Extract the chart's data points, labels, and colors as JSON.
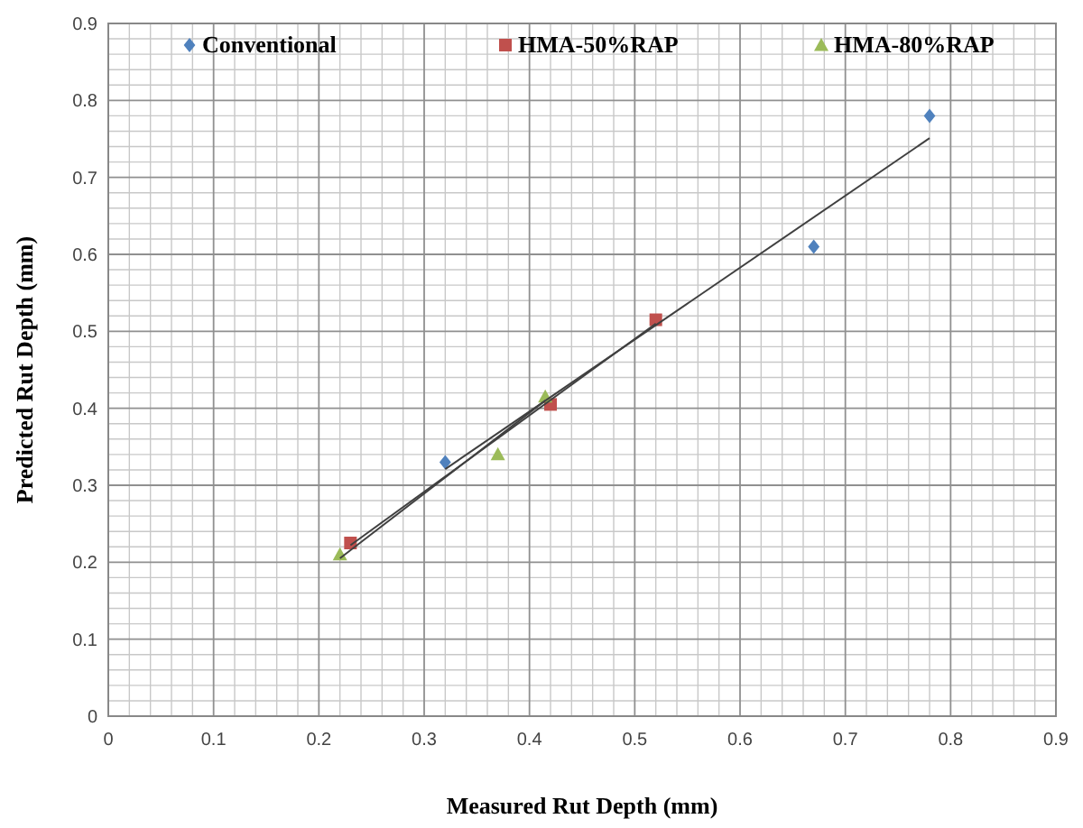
{
  "chart_data": {
    "type": "scatter",
    "xlabel": "Measured Rut Depth (mm)",
    "ylabel": "Predicted Rut Depth (mm)",
    "xlim": [
      0,
      0.9
    ],
    "xticks": [
      0,
      0.1,
      0.2,
      0.3,
      0.4,
      0.5,
      0.6,
      0.7,
      0.8,
      0.9
    ],
    "ylim": [
      0,
      0.9
    ],
    "yticks": [
      0,
      0.1,
      0.2,
      0.3,
      0.4,
      0.5,
      0.6,
      0.7,
      0.8,
      0.9
    ],
    "grid": true,
    "legend": "top",
    "series": [
      {
        "name": "Conventional",
        "color": "#4f81bd",
        "marker": "diamond",
        "x": [
          0.32,
          0.67,
          0.78
        ],
        "values": [
          0.33,
          0.61,
          0.78
        ]
      },
      {
        "name": "HMA-50%RAP",
        "color": "#c0504d",
        "marker": "square",
        "x": [
          0.23,
          0.42,
          0.52
        ],
        "values": [
          0.225,
          0.405,
          0.515
        ]
      },
      {
        "name": "HMA-80%RAP",
        "color": "#9bbb59",
        "marker": "triangle",
        "x": [
          0.22,
          0.37,
          0.415
        ],
        "values": [
          0.21,
          0.34,
          0.415
        ]
      },
      {
        "type": "line",
        "color": "#404040",
        "marker": "none",
        "x": [
          0.32,
          0.78
        ],
        "values": [
          0.321,
          0.751
        ]
      },
      {
        "type": "line",
        "color": "#404040",
        "marker": "none",
        "x": [
          0.23,
          0.52
        ],
        "values": [
          0.222,
          0.51
        ]
      },
      {
        "type": "line",
        "color": "#404040",
        "marker": "none",
        "x": [
          0.22,
          0.415
        ],
        "values": [
          0.205,
          0.41
        ]
      }
    ]
  }
}
